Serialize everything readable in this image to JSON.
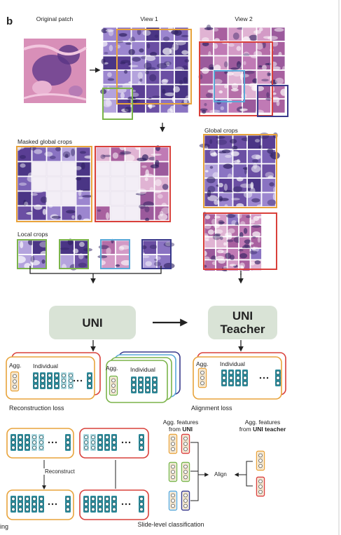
{
  "panel_letter": "b",
  "labels": {
    "original_patch": "Original patch",
    "view1": "View 1",
    "view2": "View 2",
    "masked_global_crops": "Masked global crops",
    "global_crops": "Global crops",
    "local_crops": "Local crops",
    "uni": "UNI",
    "uni_teacher": "UNI\nTeacher",
    "agg": "Agg.",
    "individual": "Individual",
    "ellipsis": "• • •",
    "reconstruction_loss": "Reconstruction loss",
    "alignment_loss": "Alignment loss",
    "reconstruct": "Reconstruct",
    "agg_features_uni_prefix": "Agg. features\nfrom ",
    "agg_features_uni_bold": "UNI",
    "agg_features_teacher_prefix": "Agg. features\nfrom ",
    "agg_features_teacher_bold": "UNI teacher",
    "align": "Align",
    "slide_level_classification": "Slide-level classification",
    "left_cut_text": "ing"
  },
  "colors": {
    "orange": "#e8a33b",
    "red": "#d9403a",
    "green": "#7bb44a",
    "blue": "#5aa8d8",
    "navy": "#3a3a8c",
    "teal": "#2b8a9a",
    "light_teal": "#a9d7df",
    "uni_box": "#d9e3d6"
  }
}
